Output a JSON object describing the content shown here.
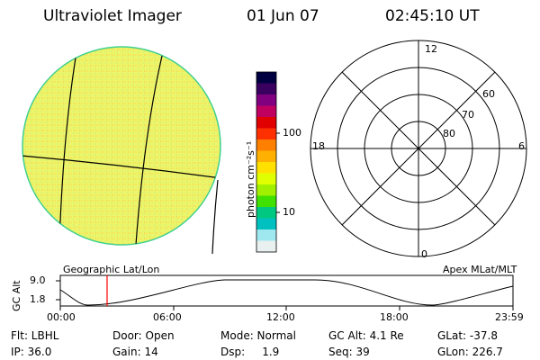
{
  "header": {
    "instrument": "Ultraviolet Imager",
    "date": "01 Jun 07",
    "time": "02:45:10 UT"
  },
  "colorbar": {
    "unit_label": "photon cm⁻²s⁻¹",
    "ticks": [
      "100",
      "10"
    ],
    "colors": [
      "#000040",
      "#3a0060",
      "#800080",
      "#c00060",
      "#e00000",
      "#ff3000",
      "#ff8000",
      "#ffb000",
      "#ffe000",
      "#e0ff00",
      "#a0f000",
      "#40e000",
      "#00c880",
      "#00c0c0",
      "#a0e8f0",
      "#e8f0f0"
    ]
  },
  "image_panel": {
    "label": "Geographic Lat/Lon",
    "disk_color": "#eaf56a",
    "rim_color": "#40d090"
  },
  "polar_panel": {
    "label": "Apex MLat/MLT",
    "mlt_labels": [
      "12",
      "18",
      "6",
      "0"
    ],
    "mlat_labels": [
      "60",
      "70",
      "80"
    ]
  },
  "altitude_plot": {
    "ylabel": "GC Alt",
    "yticks": [
      "9.0",
      "1.8"
    ],
    "xticks": [
      "00:00",
      "06:00",
      "12:00",
      "18:00",
      "23:59"
    ],
    "marker_time": "02:45:10",
    "marker_color": "#ff0000"
  },
  "info": {
    "row1": [
      "Flt: LBHL",
      "Door: Open",
      "Mode: Normal",
      "GC Alt: 4.1 Re",
      "GLat: -37.8"
    ],
    "row2": [
      "IP: 36.0",
      "Gain: 14",
      "Dsp:     1.9",
      "Seq: 39",
      "GLon: 226.7"
    ]
  }
}
